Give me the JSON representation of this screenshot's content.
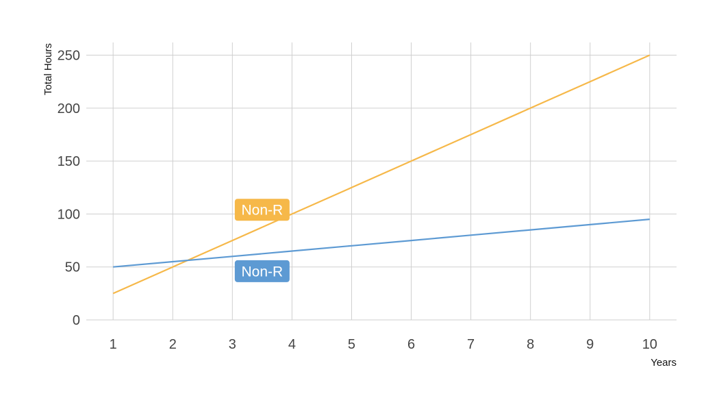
{
  "chart_data": {
    "type": "line",
    "xlabel": "Years",
    "ylabel": "Total Hours",
    "x": [
      1,
      2,
      3,
      4,
      5,
      6,
      7,
      8,
      9,
      10
    ],
    "xlim": [
      0.55,
      10.45
    ],
    "ylim": [
      0,
      262
    ],
    "x_ticks": [
      1,
      2,
      3,
      4,
      5,
      6,
      7,
      8,
      9,
      10
    ],
    "y_ticks": [
      0,
      50,
      100,
      150,
      200,
      250
    ],
    "grid": true,
    "legend": "none",
    "series": [
      {
        "name": "Non-R",
        "color": "#f6b849",
        "values": [
          25,
          50,
          75,
          100,
          125,
          150,
          175,
          200,
          225,
          250
        ]
      },
      {
        "name": "Non-R",
        "color": "#5d9ad3",
        "values": [
          50,
          55,
          60,
          65,
          70,
          75,
          80,
          85,
          90,
          95
        ]
      }
    ],
    "annotations": [
      {
        "text": "Non-R",
        "x": 3.5,
        "y": 104,
        "color": "#f6b849"
      },
      {
        "text": "Non-R",
        "x": 3.5,
        "y": 46,
        "color": "#5d9ad3"
      }
    ]
  }
}
